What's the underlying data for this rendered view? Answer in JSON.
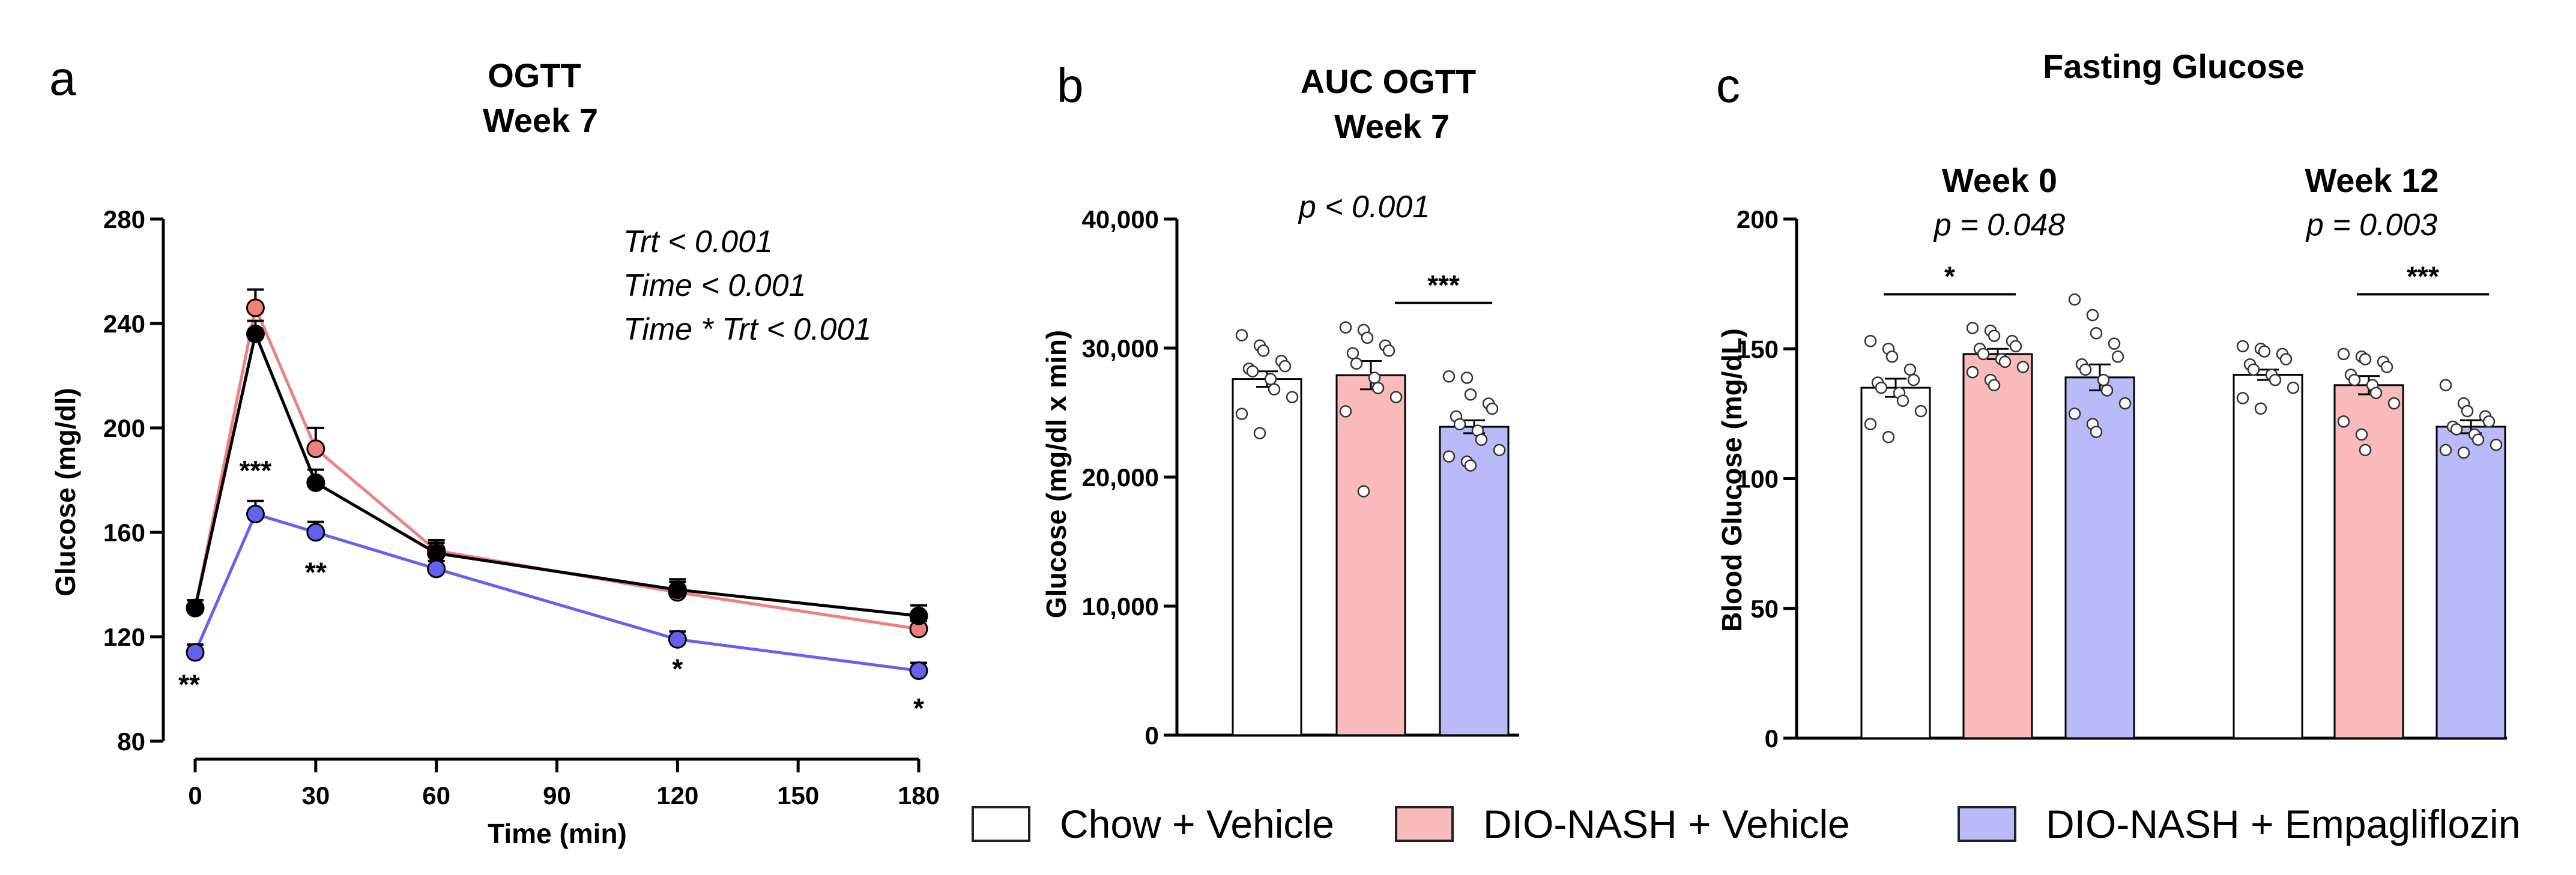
{
  "legend": {
    "items": [
      {
        "label": "Chow + Vehicle",
        "color": "#ffffff"
      },
      {
        "label": "DIO-NASH + Vehicle",
        "color": "#f8baba"
      },
      {
        "label": "DIO-NASH + Empagliflozin",
        "color": "#babaf8"
      }
    ]
  },
  "colors": {
    "chow": "#000000",
    "dio": "#f08080",
    "empa": "#6262ee",
    "chow_fill": "#ffffff",
    "dio_fill": "#f8baba",
    "empa_fill": "#babaf8"
  },
  "chart_data": [
    {
      "panel": "a",
      "type": "line",
      "title": "OGTT\nWeek 7",
      "xlabel": "Time (min)",
      "ylabel": "Glucose (mg/dl)",
      "xlim": [
        0,
        180
      ],
      "ylim": [
        80,
        280
      ],
      "xticks": [
        0,
        30,
        60,
        90,
        120,
        150,
        180
      ],
      "yticks": [
        80,
        120,
        160,
        200,
        240,
        280
      ],
      "x": [
        0,
        15,
        30,
        60,
        120,
        180
      ],
      "series": [
        {
          "key": "dio",
          "values": [
            131,
            246,
            192,
            153,
            137,
            123
          ],
          "errors": [
            3,
            7,
            8,
            4,
            4,
            3
          ]
        },
        {
          "key": "chow",
          "values": [
            131,
            236,
            179,
            152,
            138,
            128
          ],
          "errors": [
            3,
            5,
            5,
            4,
            4,
            4
          ]
        },
        {
          "key": "empa",
          "values": [
            114,
            167,
            160,
            146,
            119,
            107
          ],
          "errors": [
            3,
            5,
            4,
            3,
            3,
            3
          ]
        }
      ],
      "stats": [
        "Trt < 0.001",
        "Time < 0.001",
        "Time * Trt < 0.001"
      ],
      "annotations": [
        {
          "x": 0,
          "y": 98,
          "text": "**"
        },
        {
          "x": 15,
          "y": 180,
          "text": "***"
        },
        {
          "x": 30,
          "y": 141,
          "text": "**"
        },
        {
          "x": 120,
          "y": 104,
          "text": "*"
        },
        {
          "x": 180,
          "y": 89,
          "text": "*"
        }
      ]
    },
    {
      "panel": "b",
      "type": "bar",
      "title": "AUC OGTT\nWeek 7",
      "ylabel": "Glucose (mg/dl x min)",
      "ylim": [
        0,
        40000
      ],
      "yticks": [
        "0",
        "10,000",
        "20,000",
        "30,000",
        "40,000"
      ],
      "ytick_values": [
        0,
        10000,
        20000,
        30000,
        40000
      ],
      "pvalue": "p < 0.001",
      "bars": [
        {
          "key": "chow",
          "value": 27600,
          "error": 600,
          "points": [
            31000,
            30200,
            29800,
            29000,
            28600,
            28400,
            28200,
            27600,
            26800,
            26200,
            24900,
            23400
          ]
        },
        {
          "key": "dio",
          "value": 27900,
          "error": 1100,
          "points": [
            31600,
            31400,
            30800,
            30200,
            29800,
            29600,
            28800,
            27700,
            26900,
            26200,
            25100,
            18900
          ]
        },
        {
          "key": "empa",
          "value": 23900,
          "error": 500,
          "points": [
            27800,
            27700,
            26400,
            25700,
            25300,
            24700,
            24100,
            23600,
            22900,
            22100,
            21600,
            21200,
            20900
          ]
        }
      ],
      "brackets": [
        {
          "from": 1,
          "to": 2,
          "y": 33500,
          "text": "***"
        }
      ]
    },
    {
      "panel": "c",
      "type": "bar",
      "title": "Fasting Glucose",
      "ylabel": "Blood Glucose (mg/dL)",
      "ylim": [
        0,
        200
      ],
      "yticks": [
        "0",
        "50",
        "100",
        "150",
        "200"
      ],
      "ytick_values": [
        0,
        50,
        100,
        150,
        200
      ],
      "groups": [
        {
          "label": "Week 0",
          "pvalue": "p = 0.048",
          "bars": [
            {
              "key": "chow",
              "value": 135,
              "error": 3.5,
              "points": [
                153,
                150,
                147,
                142,
                138,
                137,
                135,
                133,
                130,
                126,
                121,
                116
              ]
            },
            {
              "key": "dio",
              "value": 148,
              "error": 2,
              "points": [
                158,
                157,
                155,
                153,
                151,
                150,
                148,
                146,
                145,
                143,
                141,
                138,
                136
              ]
            },
            {
              "key": "empa",
              "value": 139,
              "error": 5,
              "points": [
                169,
                163,
                156,
                152,
                147,
                144,
                142,
                138,
                134,
                129,
                125,
                121,
                118
              ]
            }
          ],
          "bracket": {
            "from": 0,
            "to": 1,
            "y": 171,
            "text": "*"
          }
        },
        {
          "label": "Week 12",
          "pvalue": "p = 0.003",
          "bars": [
            {
              "key": "chow",
              "value": 140,
              "error": 2,
              "points": [
                151,
                150,
                149,
                148,
                146,
                144,
                142,
                140,
                138,
                135,
                131,
                127
              ]
            },
            {
              "key": "dio",
              "value": 136,
              "error": 3.5,
              "points": [
                148,
                147,
                146,
                145,
                143,
                140,
                138,
                136,
                133,
                129,
                122,
                117,
                111
              ]
            },
            {
              "key": "empa",
              "value": 120,
              "error": 2.5,
              "points": [
                136,
                129,
                126,
                124,
                122,
                120,
                119,
                117,
                115,
                113,
                111,
                110
              ]
            }
          ],
          "bracket": {
            "from": 1,
            "to": 2,
            "y": 171,
            "text": "***"
          }
        }
      ]
    }
  ]
}
